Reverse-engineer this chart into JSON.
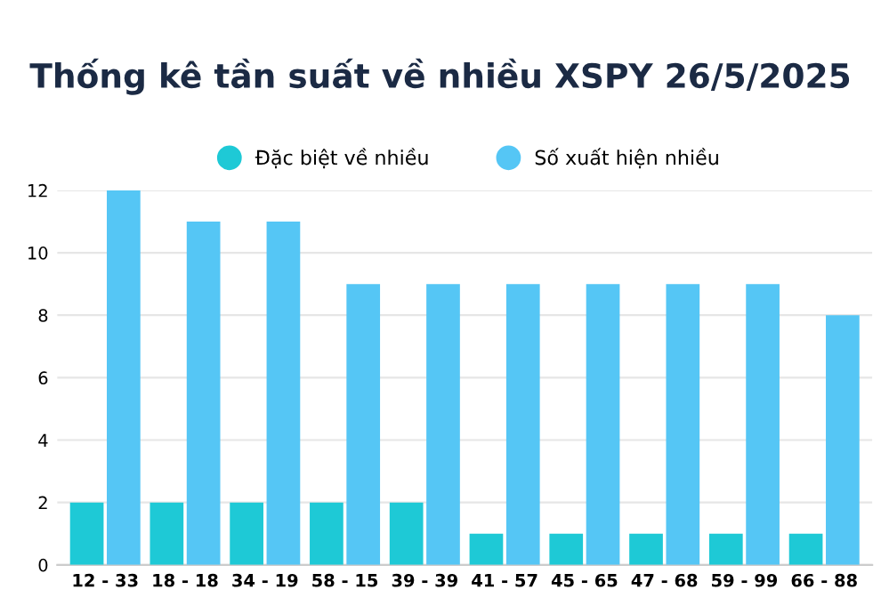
{
  "chart_data": {
    "type": "bar",
    "title": "Thống kê tần suất về nhiều XSPY 26/5/2025",
    "categories": [
      "12 - 33",
      "18 - 18",
      "34 - 19",
      "58 - 15",
      "39 - 39",
      "41 - 57",
      "45 - 65",
      "47 - 68",
      "59 - 99",
      "66 - 88"
    ],
    "series": [
      {
        "name": "Đặc biệt về nhiều",
        "color": "#1ec9d6",
        "values": [
          2,
          2,
          2,
          2,
          2,
          1,
          1,
          1,
          1,
          1
        ]
      },
      {
        "name": "Số xuất hiện nhiều",
        "color": "#55c6f5",
        "values": [
          12,
          11,
          11,
          9,
          9,
          9,
          9,
          9,
          9,
          8
        ]
      }
    ],
    "ylim": [
      0,
      12
    ],
    "yticks": [
      0,
      2,
      4,
      6,
      8,
      10,
      12
    ],
    "grid": "y",
    "legend": "top"
  }
}
